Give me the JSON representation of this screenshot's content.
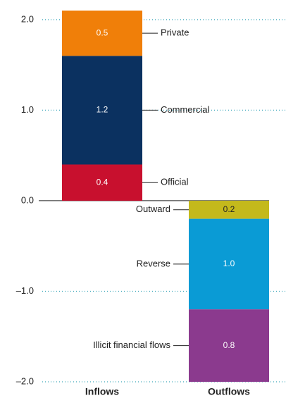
{
  "chart_data": {
    "type": "stacked_bar",
    "categories": [
      "Inflows",
      "Outflows"
    ],
    "series": [
      {
        "name": "Official",
        "color": "#c8102e",
        "values": [
          0.4,
          null
        ]
      },
      {
        "name": "Commercial",
        "color": "#0b3160",
        "values": [
          1.2,
          null
        ]
      },
      {
        "name": "Private",
        "color": "#f07f09",
        "values": [
          0.5,
          null
        ]
      },
      {
        "name": "Outward",
        "color": "#c4b91c",
        "values": [
          null,
          -0.2
        ],
        "value_labels": [
          null,
          "0.2"
        ]
      },
      {
        "name": "Reverse",
        "color": "#0a9bd5",
        "values": [
          null,
          -1.0
        ],
        "value_labels": [
          null,
          "1.0"
        ]
      },
      {
        "name": "Illicit financial flows",
        "color": "#8b3a8e",
        "values": [
          null,
          -0.8
        ],
        "value_labels": [
          null,
          "0.8"
        ]
      }
    ],
    "ylim": [
      -2.0,
      2.1
    ],
    "yticks": [
      {
        "value": 2,
        "label": "2.0"
      },
      {
        "value": 1,
        "label": "1.0"
      },
      {
        "value": 0,
        "label": "0.0"
      },
      {
        "value": -1,
        "label": "–1.0"
      },
      {
        "value": -2,
        "label": "–2.0"
      }
    ],
    "grid": true
  }
}
